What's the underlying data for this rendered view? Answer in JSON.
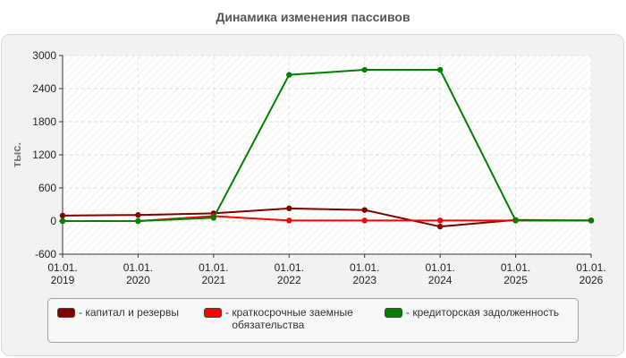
{
  "chart_data": {
    "type": "line",
    "title": "Динамика изменения пассивов",
    "ylabel": "тыс.",
    "xlabel": "",
    "categories": [
      "01.01.\n2019",
      "01.01.\n2020",
      "01.01.\n2021",
      "01.01.\n2022",
      "01.01.\n2023",
      "01.01.\n2024",
      "01.01.\n2025",
      "01.01.\n2026"
    ],
    "ylim": [
      -600,
      3000
    ],
    "yticks": [
      -600,
      0,
      600,
      1200,
      1800,
      2400,
      3000
    ],
    "grid": true,
    "legend_position": "bottom",
    "series": [
      {
        "name": "капитал и резервы",
        "color": "#800000",
        "values": [
          100,
          110,
          140,
          230,
          200,
          -100,
          20,
          10
        ]
      },
      {
        "name": "краткосрочные заемные обязательства",
        "color": "#ff0000",
        "values": [
          0,
          0,
          90,
          10,
          10,
          10,
          10,
          10
        ]
      },
      {
        "name": "кредиторская задолженность",
        "color": "#008000",
        "values": [
          0,
          0,
          60,
          2650,
          2740,
          2740,
          10,
          10
        ]
      }
    ]
  }
}
